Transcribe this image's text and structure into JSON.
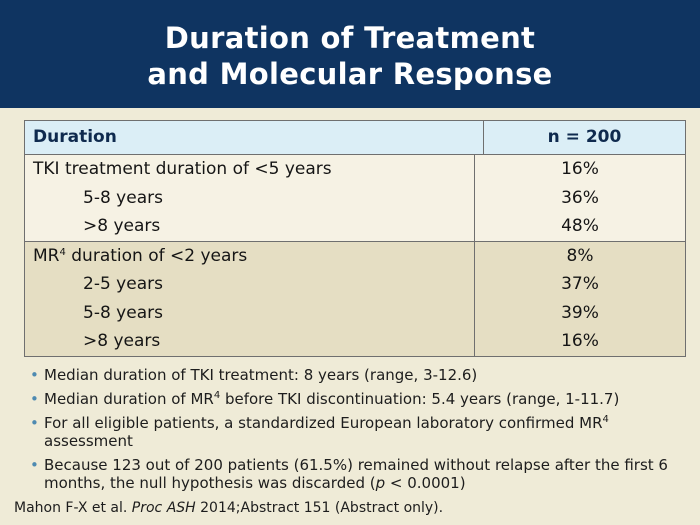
{
  "title": {
    "line1": "Duration of Treatment",
    "line2": "and Molecular Response"
  },
  "table": {
    "header": {
      "duration": "Duration",
      "n": "n = 200"
    },
    "tki_group": {
      "label_main": "TKI treatment duration of <5 years",
      "rows": [
        {
          "label": "5-8 years",
          "value": "36%"
        },
        {
          "label": ">8 years",
          "value": "48%"
        }
      ],
      "first_value": "16%"
    },
    "mr_group": {
      "label_prefix": "MR",
      "label_sup": "4",
      "label_suffix": " duration of <2 years",
      "first_value": "8%",
      "rows": [
        {
          "label": "2-5 years",
          "value": "37%"
        },
        {
          "label": "5-8 years",
          "value": "39%"
        },
        {
          "label": ">8 years",
          "value": "16%"
        }
      ]
    }
  },
  "bullets": {
    "b1": "Median duration of TKI treatment: 8 years (range, 3-12.6)",
    "b2_pre": "Median duration of MR",
    "b2_sup": "4",
    "b2_post": " before TKI discontinuation: 5.4 years (range, 1-11.7)",
    "b3_pre": "For all eligible patients, a standardized European laboratory confirmed MR",
    "b3_sup": "4",
    "b3_post": " assessment",
    "b4_pre": "Because 123 out of 200 patients (61.5%) remained without relapse after the first 6 months, the null hypothesis was discarded (",
    "b4_italic": "p",
    "b4_post": " < 0.0001)",
    "marker": "•"
  },
  "citation": {
    "pre": "Mahon F-X et al. ",
    "italic": "Proc ASH",
    "post": " 2014;Abstract 151 (Abstract only)."
  }
}
